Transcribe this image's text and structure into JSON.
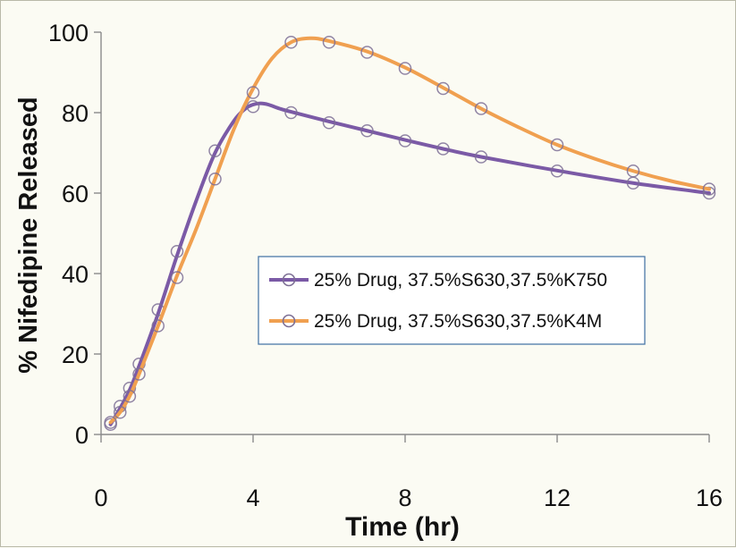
{
  "chart_data": {
    "type": "line",
    "title": "",
    "xlabel": "Time (hr)",
    "ylabel": "% Nifedipine Released",
    "xlim": [
      0,
      16
    ],
    "ylim": [
      0,
      100
    ],
    "xticks": [
      0,
      4,
      8,
      12,
      16
    ],
    "yticks": [
      0,
      20,
      40,
      60,
      80,
      100
    ],
    "grid": false,
    "legend_position": "center-right",
    "series": [
      {
        "name": "25% Drug, 37.5%S630,37.5%K750",
        "color": "#7b5aa6",
        "marker": "open-circle",
        "x": [
          0.25,
          0.5,
          0.75,
          1,
          1.5,
          2,
          3,
          4,
          5,
          6,
          7,
          8,
          9,
          10,
          12,
          14,
          16
        ],
        "y": [
          2.5,
          7,
          11.5,
          17.5,
          31,
          45.5,
          70.5,
          81.5,
          80,
          77.5,
          75.5,
          73,
          71,
          69,
          65.5,
          62.5,
          60
        ],
        "curve_x": [
          0.25,
          0.5,
          0.75,
          1,
          1.5,
          2,
          2.5,
          3,
          3.5,
          3.8,
          4,
          4.2,
          4.4,
          4.7,
          5,
          6,
          7,
          8,
          9,
          10,
          12,
          14,
          16
        ],
        "curve_y": [
          2.5,
          6.5,
          11,
          17,
          30,
          44.5,
          58,
          70,
          78,
          81,
          82,
          82.3,
          82,
          81,
          80.2,
          77.8,
          75.5,
          73.2,
          71,
          69,
          65.6,
          62.5,
          60
        ]
      },
      {
        "name": "25% Drug, 37.5%S630,37.5%K4M",
        "color": "#f0a050",
        "marker": "open-circle",
        "x": [
          0.25,
          0.5,
          0.75,
          1,
          1.5,
          2,
          3,
          4,
          5,
          6,
          7,
          8,
          9,
          10,
          12,
          14,
          16
        ],
        "y": [
          3,
          5.5,
          9.5,
          15,
          27,
          39,
          63.5,
          85,
          97.5,
          97.5,
          95,
          91,
          86,
          81,
          72,
          65.5,
          61
        ],
        "curve_x": [
          0.25,
          0.5,
          0.75,
          1,
          1.5,
          2,
          2.5,
          3,
          3.5,
          4,
          4.5,
          5,
          5.5,
          6,
          7,
          8,
          9,
          10,
          11,
          12,
          13,
          14,
          15,
          16
        ],
        "curve_y": [
          3,
          5.5,
          9.5,
          15,
          27,
          39.5,
          51,
          63.5,
          76,
          86,
          93.5,
          97.5,
          98.5,
          97.8,
          95.2,
          91.2,
          86.2,
          81,
          76.3,
          72,
          68.5,
          65.5,
          63,
          61
        ]
      }
    ]
  }
}
